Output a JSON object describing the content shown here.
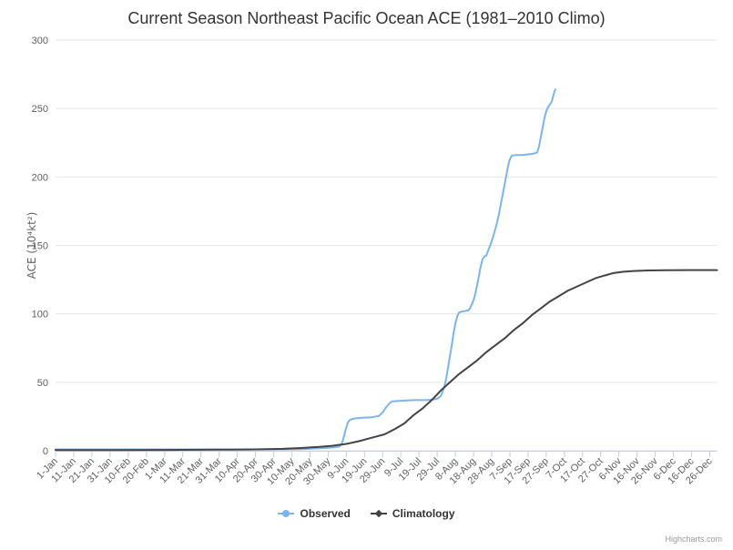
{
  "header": {
    "title": "Current Season Northeast Pacific Ocean ACE (1981–2010 Climo)"
  },
  "legend": {
    "items": [
      {
        "label": "Observed",
        "color": "#7cb5ec",
        "marker": "circle"
      },
      {
        "label": "Climatology",
        "color": "#434348",
        "marker": "diamond"
      }
    ]
  },
  "credits": {
    "label": "Highcharts.com"
  },
  "colors": {
    "observed": "#7cb5ec",
    "climatology": "#434348",
    "gridline": "#e6e6e6",
    "axis_line": "#c0d0e0",
    "tick_mark": "#c0d0e0",
    "axis_label": "#606060",
    "axis_title": "#666666",
    "title_text": "#333333",
    "credits_text": "#999999"
  },
  "chart_data": {
    "type": "line",
    "title": "Current Season Northeast Pacific Ocean ACE (1981–2010 Climo)",
    "xlabel": "",
    "ylabel": "ACE (10⁴kt²)",
    "ylim": [
      0,
      300
    ],
    "y_ticks": [
      0,
      50,
      100,
      150,
      200,
      250,
      300
    ],
    "grid": true,
    "legend_position": "bottom",
    "x_domain_days": [
      0,
      364
    ],
    "x_tick_interval_days": 10,
    "x_tick_labels": [
      "1-Jan",
      "11-Jan",
      "21-Jan",
      "31-Jan",
      "10-Feb",
      "20-Feb",
      "1-Mar",
      "11-Mar",
      "21-Mar",
      "31-Mar",
      "10-Apr",
      "20-Apr",
      "30-Apr",
      "10-May",
      "20-May",
      "30-May",
      "9-Jun",
      "19-Jun",
      "29-Jun",
      "9-Jul",
      "19-Jul",
      "29-Jul",
      "8-Aug",
      "18-Aug",
      "28-Aug",
      "7-Sep",
      "17-Sep",
      "27-Sep",
      "7-Oct",
      "17-Oct",
      "27-Oct",
      "6-Nov",
      "16-Nov",
      "26-Nov",
      "6-Dec",
      "16-Dec",
      "26-Dec"
    ],
    "series": [
      {
        "name": "Observed",
        "color": "#7cb5ec",
        "marker": "circle",
        "points": [
          [
            0,
            1
          ],
          [
            20,
            1
          ],
          [
            40,
            1
          ],
          [
            60,
            1
          ],
          [
            80,
            1
          ],
          [
            100,
            1
          ],
          [
            120,
            1
          ],
          [
            135,
            1.2
          ],
          [
            145,
            1.8
          ],
          [
            150,
            2.2
          ],
          [
            154,
            2.6
          ],
          [
            156,
            3
          ],
          [
            157,
            4
          ],
          [
            158,
            7
          ],
          [
            159,
            12
          ],
          [
            160,
            17
          ],
          [
            161,
            21
          ],
          [
            162,
            22.5
          ],
          [
            164,
            23.5
          ],
          [
            168,
            24
          ],
          [
            174,
            24.5
          ],
          [
            178,
            25.5
          ],
          [
            180,
            28
          ],
          [
            182,
            32
          ],
          [
            184,
            35
          ],
          [
            185,
            36
          ],
          [
            190,
            36.5
          ],
          [
            197,
            37
          ],
          [
            204,
            37
          ],
          [
            208,
            37.5
          ],
          [
            210,
            38
          ],
          [
            212,
            40
          ],
          [
            213,
            43
          ],
          [
            214,
            47
          ],
          [
            215,
            53
          ],
          [
            216,
            61
          ],
          [
            217,
            69
          ],
          [
            218,
            77
          ],
          [
            219,
            86
          ],
          [
            220,
            93
          ],
          [
            221,
            98
          ],
          [
            222,
            101
          ],
          [
            223,
            101.5
          ],
          [
            225,
            102
          ],
          [
            227,
            102.5
          ],
          [
            228,
            104
          ],
          [
            230,
            110
          ],
          [
            231,
            115
          ],
          [
            232,
            121
          ],
          [
            233,
            128
          ],
          [
            234,
            135
          ],
          [
            235,
            140
          ],
          [
            236,
            142
          ],
          [
            237,
            142.5
          ],
          [
            238,
            146
          ],
          [
            240,
            153
          ],
          [
            242,
            162
          ],
          [
            243,
            167
          ],
          [
            244,
            173
          ],
          [
            245,
            180
          ],
          [
            246,
            187
          ],
          [
            247,
            194
          ],
          [
            248,
            201
          ],
          [
            249,
            208
          ],
          [
            250,
            213
          ],
          [
            251,
            215.5
          ],
          [
            253,
            216
          ],
          [
            257,
            216
          ],
          [
            260,
            216.5
          ],
          [
            263,
            217
          ],
          [
            265,
            218
          ],
          [
            266,
            222
          ],
          [
            267,
            229
          ],
          [
            268,
            236
          ],
          [
            269,
            243
          ],
          [
            270,
            248
          ],
          [
            271,
            251
          ],
          [
            272,
            253
          ],
          [
            273,
            255
          ],
          [
            274,
            260
          ],
          [
            275,
            264
          ]
        ]
      },
      {
        "name": "Climatology",
        "color": "#434348",
        "marker": "diamond",
        "points": [
          [
            0,
            0.5
          ],
          [
            30,
            0.5
          ],
          [
            60,
            0.6
          ],
          [
            90,
            0.8
          ],
          [
            110,
            1
          ],
          [
            125,
            1.4
          ],
          [
            135,
            2
          ],
          [
            145,
            2.8
          ],
          [
            152,
            3.6
          ],
          [
            160,
            5
          ],
          [
            167,
            7
          ],
          [
            174,
            9.5
          ],
          [
            181,
            12
          ],
          [
            187,
            16
          ],
          [
            192,
            20
          ],
          [
            197,
            26
          ],
          [
            202,
            31
          ],
          [
            207,
            37
          ],
          [
            212,
            44
          ],
          [
            217,
            50
          ],
          [
            222,
            56
          ],
          [
            227,
            61
          ],
          [
            232,
            66
          ],
          [
            237,
            72
          ],
          [
            242,
            77
          ],
          [
            247,
            82
          ],
          [
            252,
            88
          ],
          [
            257,
            93
          ],
          [
            262,
            99
          ],
          [
            267,
            104
          ],
          [
            272,
            109
          ],
          [
            277,
            113
          ],
          [
            282,
            117
          ],
          [
            287,
            120
          ],
          [
            292,
            123
          ],
          [
            297,
            126
          ],
          [
            302,
            128
          ],
          [
            307,
            129.8
          ],
          [
            312,
            130.7
          ],
          [
            318,
            131.3
          ],
          [
            326,
            131.7
          ],
          [
            336,
            131.9
          ],
          [
            348,
            132
          ],
          [
            364,
            132
          ]
        ]
      }
    ]
  }
}
